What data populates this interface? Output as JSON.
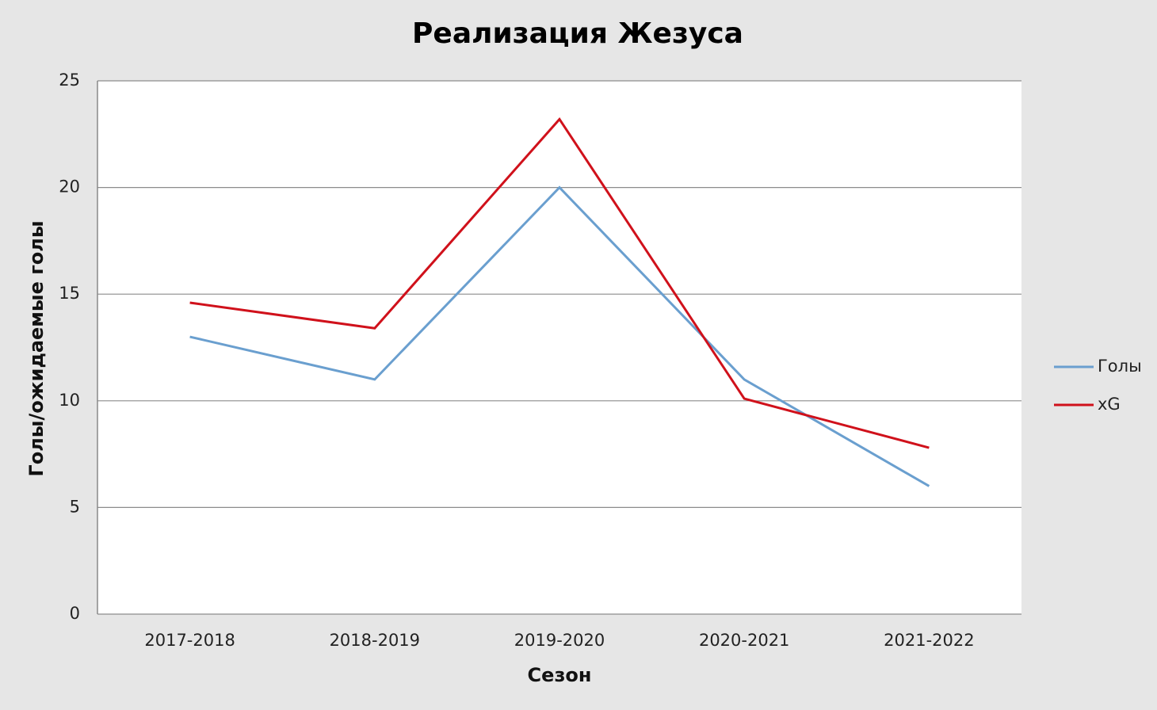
{
  "chart_data": {
    "type": "line",
    "title": "Реализация Жезуса",
    "x_label": "Сезон",
    "y_label": "Голы/ожидаемые голы",
    "categories": [
      "2017-2018",
      "2018-2019",
      "2019-2020",
      "2020-2021",
      "2021-2022"
    ],
    "series": [
      {
        "name": "Голы",
        "color": "#6a9fcf",
        "values": [
          13,
          11,
          20,
          11,
          6
        ]
      },
      {
        "name": "xG",
        "color": "#d0111b",
        "values": [
          14.6,
          13.4,
          23.2,
          10.1,
          7.8
        ]
      }
    ],
    "ylim": [
      0,
      25
    ],
    "yticks": [
      0,
      5,
      10,
      15,
      20,
      25
    ],
    "grid": true,
    "legend": "right"
  }
}
